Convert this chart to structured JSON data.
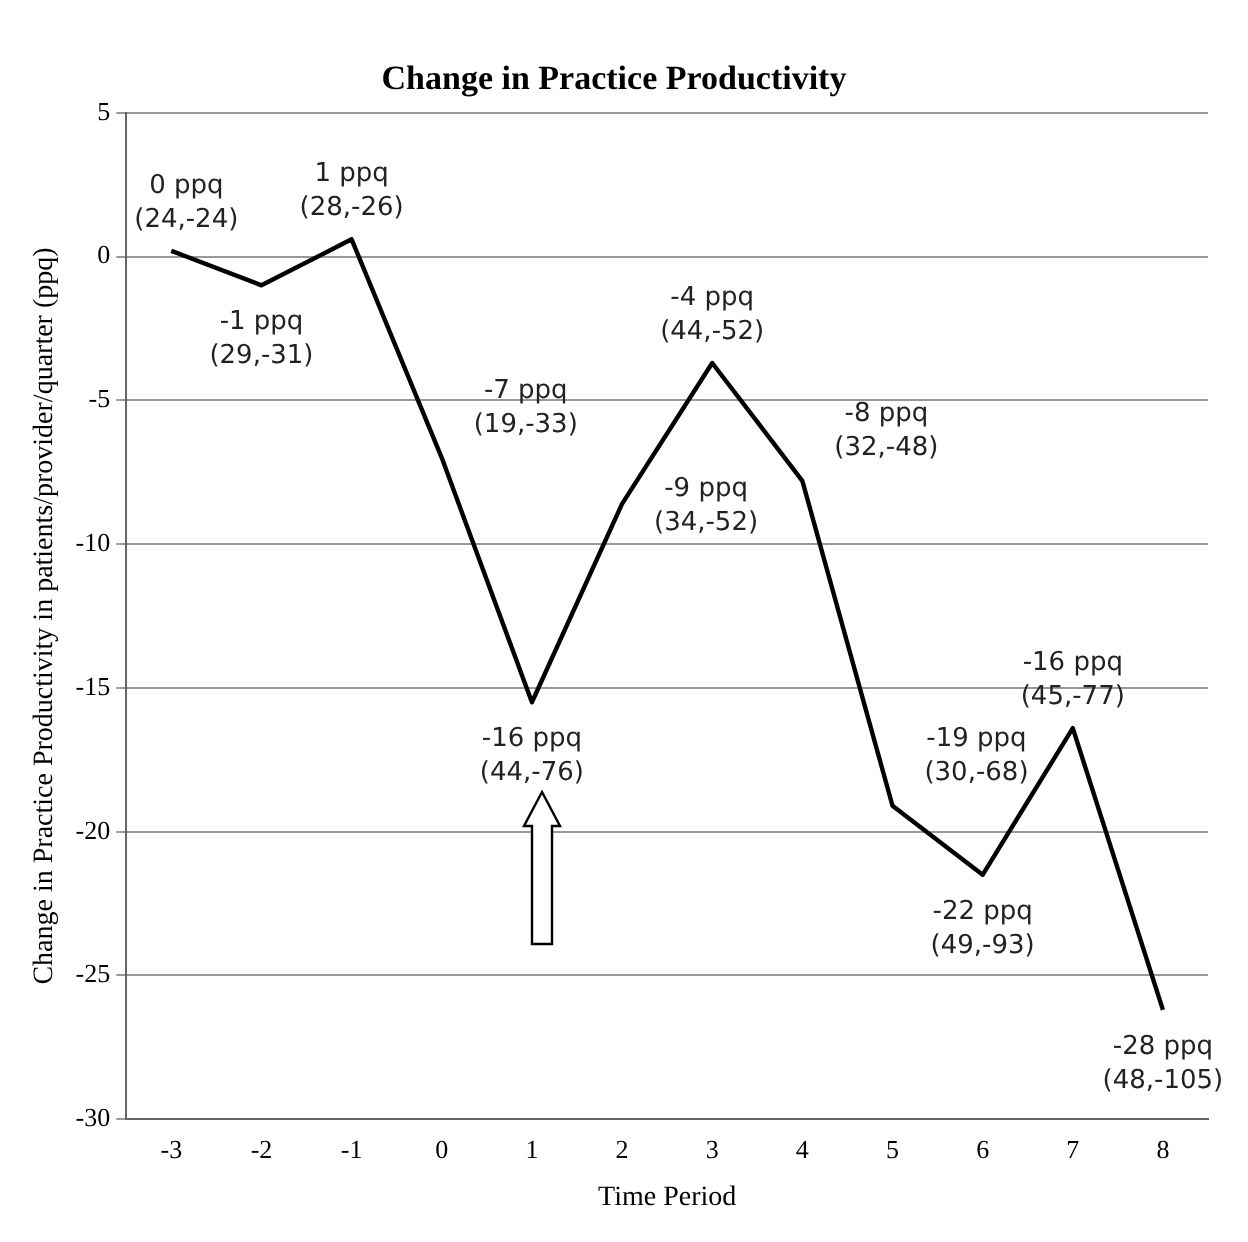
{
  "chart_data": {
    "type": "line",
    "title": "Change in Practice Productivity",
    "xlabel": "Time Period",
    "ylabel": "Change in Practice Productivity in patients/provider/quarter (ppq)",
    "x": [
      -3,
      -2,
      -1,
      0,
      1,
      2,
      3,
      4,
      5,
      6,
      7,
      8
    ],
    "series": [
      {
        "color": "#000000",
        "values": [
          0.2,
          -1,
          0.6,
          -7,
          -15.5,
          -8.6,
          -3.7,
          -7.8,
          -19.1,
          -21.5,
          -16.4,
          -26.2
        ]
      }
    ],
    "annotations": [
      {
        "text": "0 ppq\n(24,-24)",
        "x": -3,
        "y": 0.2
      },
      {
        "text": "-1 ppq\n(29,-31)",
        "x": -2,
        "y": -1
      },
      {
        "text": "1 ppq\n(28,-26)",
        "x": -1,
        "y": 0.6
      },
      {
        "text": "-7 ppq\n(19,-33)",
        "x": 0,
        "y": -7
      },
      {
        "text": "-16 ppq\n(44,-76)",
        "x": 1,
        "y": -15.5
      },
      {
        "text": "-9 ppq\n(34,-52)",
        "x": 2,
        "y": -8.6
      },
      {
        "text": "-4 ppq\n(44,-52)",
        "x": 3,
        "y": -3.7
      },
      {
        "text": "-8 ppq\n(32,-48)",
        "x": 4,
        "y": -7.8
      },
      {
        "text": "-19 ppq\n(30,-68)",
        "x": 5,
        "y": -19.1
      },
      {
        "text": "-22 ppq\n(49,-93)",
        "x": 6,
        "y": -21.5
      },
      {
        "text": "-16 ppq\n(45,-77)",
        "x": 7,
        "y": -16.4
      },
      {
        "text": "-28 ppq\n(48,-105)",
        "x": 8,
        "y": -26.2
      }
    ],
    "xlim": [
      -3.5,
      8.5
    ],
    "xticks": [
      -3,
      -2,
      -1,
      0,
      1,
      2,
      3,
      4,
      5,
      6,
      7,
      8
    ],
    "ylim": [
      -30,
      5
    ],
    "yticks": [
      -30,
      -25,
      -20,
      -15,
      -10,
      -5,
      0,
      5
    ],
    "grid": "y",
    "legend": false,
    "marker": "none",
    "line_style": "solid"
  }
}
